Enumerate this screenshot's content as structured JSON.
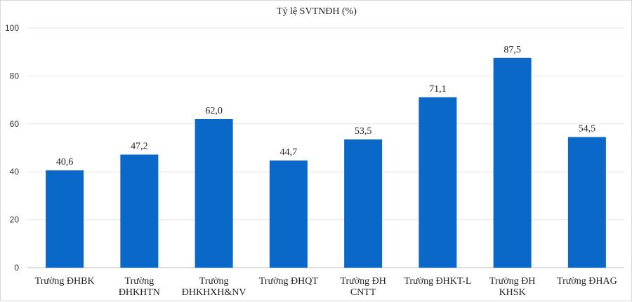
{
  "chart_data": {
    "type": "bar",
    "title": "Tỷ lệ SVTNĐH (%)",
    "categories": [
      [
        "Trường ĐHBK"
      ],
      [
        "Trường",
        "ĐHKHTN"
      ],
      [
        "Trường",
        "ĐHKHXH&NV"
      ],
      [
        "Trường ĐHQT"
      ],
      [
        "Trường ĐH",
        "CNTT"
      ],
      [
        "Trường ĐHKT-L"
      ],
      [
        "Trường ĐH",
        "KHSK"
      ],
      [
        "Trường ĐHAG"
      ]
    ],
    "values": [
      40.6,
      47.2,
      62.0,
      44.7,
      53.5,
      71.1,
      87.5,
      54.5
    ],
    "data_labels": [
      "40,6",
      "47,2",
      "62,0",
      "44,7",
      "53,5",
      "71,1",
      "87,5",
      "54,5"
    ],
    "y_ticks": [
      "0",
      "20",
      "40",
      "60",
      "80",
      "100"
    ],
    "ylim": [
      0,
      100
    ],
    "grid": true,
    "legend": "none",
    "bar_color": "#0a68c8"
  }
}
